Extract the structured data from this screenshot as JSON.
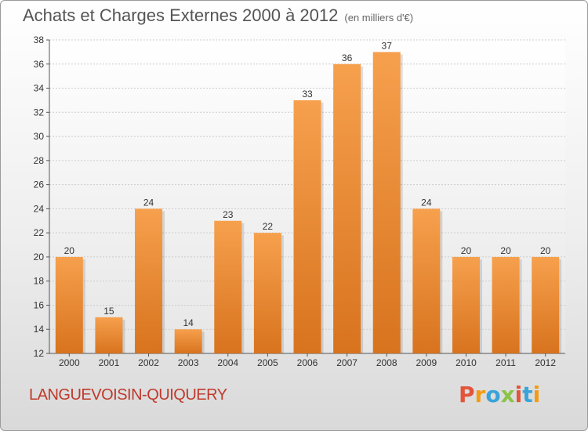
{
  "header": {
    "title": "Achats et Charges Externes 2000 à 2012",
    "unit": "(en milliers d'€)"
  },
  "footer": {
    "place": "LANGUEVOISIN-QUIQUERY",
    "logo": "Proxiti"
  },
  "colors": {
    "bar_top": "#f6a04d",
    "bar_bottom": "#d8731e",
    "logo_letters": [
      "#e2553b",
      "#f39c12",
      "#3aa3d8",
      "#8bc34a",
      "#e2553b",
      "#3aa3d8",
      "#f39c12"
    ]
  },
  "chart_data": {
    "type": "bar",
    "categories": [
      "2000",
      "2001",
      "2002",
      "2003",
      "2004",
      "2005",
      "2006",
      "2007",
      "2008",
      "2009",
      "2010",
      "2011",
      "2012"
    ],
    "values": [
      20,
      15,
      24,
      14,
      23,
      22,
      33,
      36,
      37,
      24,
      20,
      20,
      20
    ],
    "ylim": [
      12,
      38
    ],
    "yticks": [
      12,
      14,
      16,
      18,
      20,
      22,
      24,
      26,
      28,
      30,
      32,
      34,
      36,
      38
    ],
    "grid": true
  }
}
